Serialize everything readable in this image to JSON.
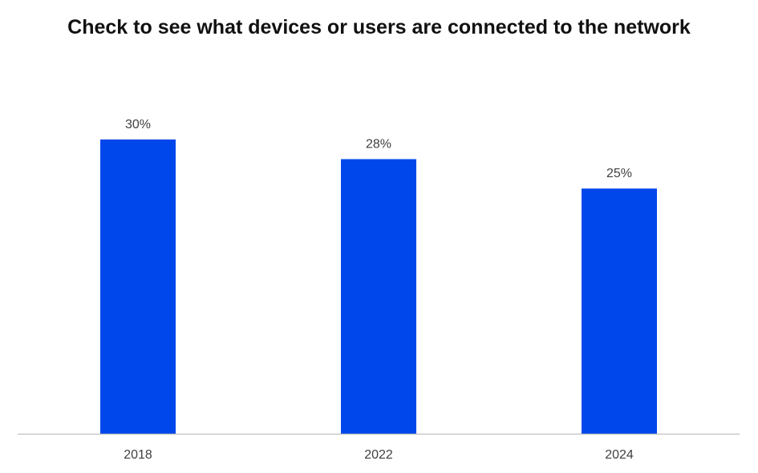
{
  "chart_data": {
    "type": "bar",
    "title": "Check to see what devices or users are connected to the network",
    "categories": [
      "2018",
      "2022",
      "2024"
    ],
    "values": [
      30,
      28,
      25
    ],
    "value_labels": [
      "30%",
      "28%",
      "25%"
    ],
    "unit": "%",
    "xlabel": "",
    "ylabel": "",
    "ylim": [
      0,
      30
    ],
    "grid": false,
    "legend": "none",
    "bar_color": "#0047EB",
    "axis_color": "#BFBFBF",
    "label_color": "#404040",
    "title_color": "#111111"
  }
}
